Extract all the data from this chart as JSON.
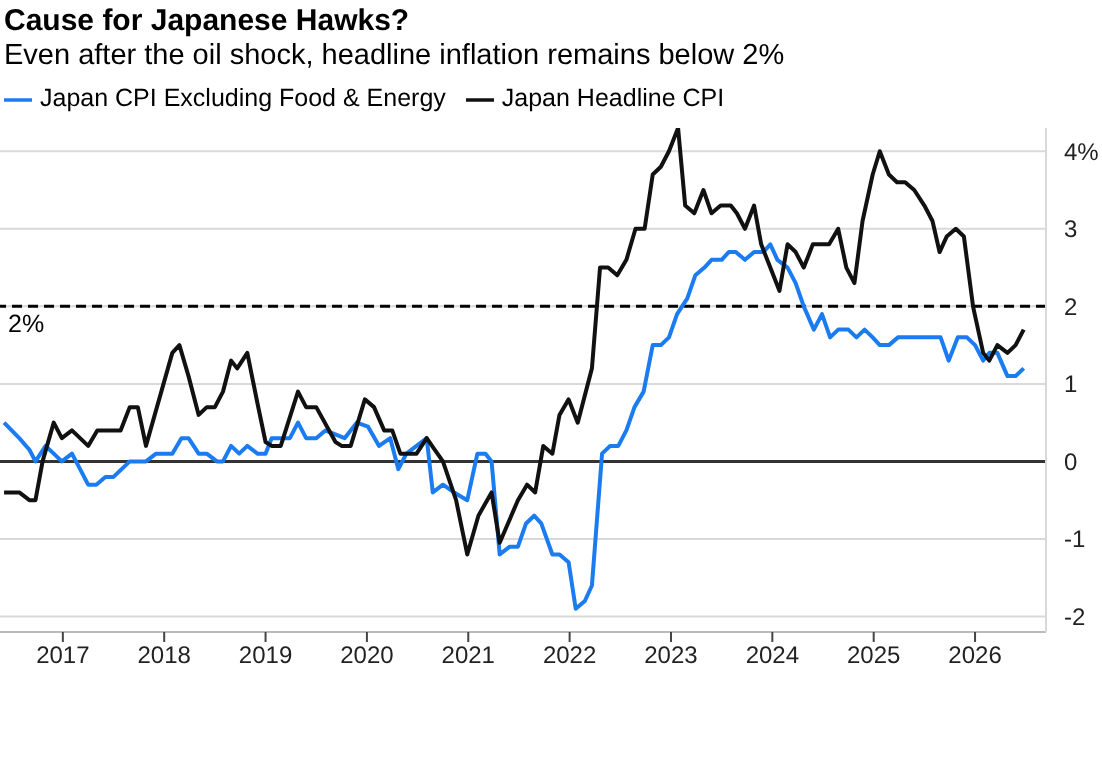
{
  "chart_data": {
    "type": "line",
    "title": "Cause for Japanese Hawks?",
    "subtitle": "Even after the oil shock, headline inflation remains below 2%",
    "legend": "top left",
    "grid": "y",
    "marker": "none",
    "line_style": "solid",
    "xlim": [
      2016.38,
      2026.7
    ],
    "xticks": [
      2017,
      2018,
      2019,
      2020,
      2021,
      2022,
      2023,
      2024,
      2025,
      2026
    ],
    "ylim": [
      -2.2,
      4.3
    ],
    "yticks": [
      -2,
      -1,
      0,
      1,
      2,
      3,
      {
        "value": 4,
        "label": "4%"
      }
    ],
    "ref_lines": [
      {
        "axis": "y",
        "value": 2,
        "label": "2%",
        "color": "#000000",
        "line_style": "dashed"
      },
      {
        "axis": "y",
        "value": 0,
        "label": null,
        "color": "#333333",
        "line_style": "solid"
      }
    ],
    "series": [
      {
        "name": "Japan CPI Excluding Food & Energy",
        "color": "#1a7cf0",
        "x": [
          2016.42,
          2016.57,
          2016.67,
          2016.73,
          2016.83,
          2016.99,
          2017.09,
          2017.25,
          2017.33,
          2017.42,
          2017.5,
          2017.66,
          2017.82,
          2017.92,
          2018.08,
          2018.17,
          2018.24,
          2018.34,
          2018.42,
          2018.52,
          2018.58,
          2018.66,
          2018.74,
          2018.82,
          2018.92,
          2019.0,
          2019.06,
          2019.24,
          2019.32,
          2019.4,
          2019.5,
          2019.59,
          2019.78,
          2019.9,
          2020.01,
          2020.12,
          2020.23,
          2020.31,
          2020.39,
          2020.59,
          2020.65,
          2020.75,
          2020.86,
          2020.99,
          2021.09,
          2021.17,
          2021.23,
          2021.31,
          2021.41,
          2021.49,
          2021.57,
          2021.65,
          2021.72,
          2021.83,
          2021.9,
          2021.99,
          2022.06,
          2022.15,
          2022.22,
          2022.32,
          2022.4,
          2022.48,
          2022.56,
          2022.64,
          2022.73,
          2022.82,
          2022.9,
          2022.98,
          2023.06,
          2023.16,
          2023.24,
          2023.33,
          2023.4,
          2023.5,
          2023.57,
          2023.64,
          2023.73,
          2023.82,
          2023.91,
          2023.98,
          2024.05,
          2024.15,
          2024.23,
          2024.31,
          2024.41,
          2024.49,
          2024.57,
          2024.65,
          2024.75,
          2024.83,
          2024.91,
          2024.99,
          2025.06,
          2025.15,
          2025.24,
          2025.66,
          2025.74,
          2025.83,
          2025.92,
          2026.0,
          2026.08,
          2026.14,
          2026.22,
          2026.32,
          2026.4,
          2026.48
        ],
        "values": [
          0.5,
          0.3,
          0.15,
          0,
          0.2,
          0,
          0.1,
          -0.3,
          -0.3,
          -0.2,
          -0.2,
          0,
          0,
          0.1,
          0.1,
          0.3,
          0.3,
          0.1,
          0.1,
          0,
          0,
          0.2,
          0.1,
          0.2,
          0.1,
          0.1,
          0.3,
          0.3,
          0.5,
          0.3,
          0.3,
          0.4,
          0.3,
          0.5,
          0.45,
          0.2,
          0.3,
          -0.1,
          0.1,
          0.3,
          -0.4,
          -0.3,
          -0.4,
          -0.5,
          0.1,
          0.1,
          0,
          -1.2,
          -1.1,
          -1.1,
          -0.8,
          -0.7,
          -0.8,
          -1.2,
          -1.2,
          -1.3,
          -1.9,
          -1.8,
          -1.6,
          0.1,
          0.2,
          0.2,
          0.4,
          0.7,
          0.9,
          1.5,
          1.5,
          1.6,
          1.9,
          2.1,
          2.4,
          2.5,
          2.6,
          2.6,
          2.7,
          2.7,
          2.6,
          2.7,
          2.7,
          2.8,
          2.6,
          2.5,
          2.3,
          2.0,
          1.7,
          1.9,
          1.6,
          1.7,
          1.7,
          1.6,
          1.7,
          1.6,
          1.5,
          1.5,
          1.6,
          1.6,
          1.3,
          1.6,
          1.6,
          1.5,
          1.3,
          1.4,
          1.4,
          1.1,
          1.1,
          1.2
        ]
      },
      {
        "name": "Japan Headline CPI",
        "color": "#111111",
        "x": [
          2016.42,
          2016.57,
          2016.67,
          2016.73,
          2016.8,
          2016.91,
          2016.99,
          2017.09,
          2017.25,
          2017.34,
          2017.57,
          2017.66,
          2017.74,
          2017.82,
          2018.08,
          2018.15,
          2018.24,
          2018.34,
          2018.42,
          2018.5,
          2018.58,
          2018.66,
          2018.72,
          2018.82,
          2018.92,
          2019.0,
          2019.06,
          2019.15,
          2019.32,
          2019.4,
          2019.5,
          2019.69,
          2019.75,
          2019.84,
          2019.98,
          2020.07,
          2020.17,
          2020.25,
          2020.33,
          2020.49,
          2020.59,
          2020.67,
          2020.75,
          2020.88,
          2020.99,
          2021.1,
          2021.23,
          2021.31,
          2021.49,
          2021.58,
          2021.66,
          2021.74,
          2021.83,
          2021.9,
          2021.99,
          2022.08,
          2022.16,
          2022.22,
          2022.3,
          2022.38,
          2022.47,
          2022.56,
          2022.65,
          2022.74,
          2022.82,
          2022.9,
          2022.98,
          2023.07,
          2023.14,
          2023.23,
          2023.32,
          2023.4,
          2023.49,
          2023.59,
          2023.65,
          2023.73,
          2023.82,
          2023.89,
          2023.98,
          2024.07,
          2024.15,
          2024.23,
          2024.31,
          2024.4,
          2024.56,
          2024.65,
          2024.73,
          2024.81,
          2024.89,
          2024.99,
          2025.06,
          2025.15,
          2025.23,
          2025.31,
          2025.4,
          2025.5,
          2025.58,
          2025.65,
          2025.72,
          2025.81,
          2025.89,
          2025.98,
          2026.08,
          2026.14,
          2026.22,
          2026.32,
          2026.4,
          2026.48
        ],
        "values": [
          -0.4,
          -0.4,
          -0.5,
          -0.5,
          0,
          0.5,
          0.3,
          0.4,
          0.2,
          0.4,
          0.4,
          0.7,
          0.7,
          0.2,
          1.4,
          1.5,
          1.1,
          0.6,
          0.7,
          0.7,
          0.9,
          1.3,
          1.2,
          1.4,
          0.75,
          0.25,
          0.2,
          0.2,
          0.9,
          0.7,
          0.7,
          0.25,
          0.2,
          0.2,
          0.8,
          0.7,
          0.4,
          0.4,
          0.1,
          0.1,
          0.3,
          0.15,
          0,
          -0.5,
          -1.2,
          -0.7,
          -0.4,
          -1.05,
          -0.5,
          -0.3,
          -0.4,
          0.2,
          0.1,
          0.6,
          0.8,
          0.5,
          0.9,
          1.2,
          2.5,
          2.5,
          2.4,
          2.6,
          3.0,
          3.0,
          3.7,
          3.8,
          4.0,
          4.3,
          3.3,
          3.2,
          3.5,
          3.2,
          3.3,
          3.3,
          3.2,
          3.0,
          3.3,
          2.8,
          2.5,
          2.2,
          2.8,
          2.7,
          2.5,
          2.8,
          2.8,
          3.0,
          2.5,
          2.3,
          3.1,
          3.7,
          4.0,
          3.7,
          3.6,
          3.6,
          3.5,
          3.3,
          3.1,
          2.7,
          2.9,
          3.0,
          2.9,
          2.0,
          1.4,
          1.3,
          1.5,
          1.4,
          1.5,
          1.7
        ]
      }
    ]
  }
}
